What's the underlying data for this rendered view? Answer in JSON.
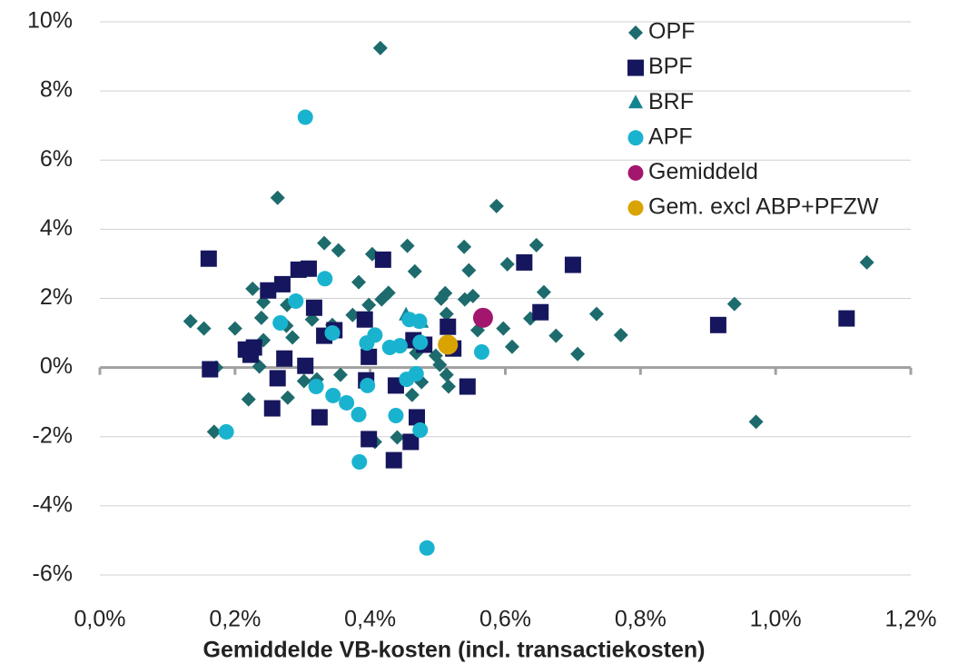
{
  "chart_data": {
    "type": "scatter",
    "x_label": "Gemiddelde VB-kosten (incl. transactiekosten)",
    "xlim": [
      0,
      1.2
    ],
    "ylim": [
      -6,
      10
    ],
    "xticks": [
      {
        "value": 0,
        "label": "0,0%"
      },
      {
        "value": 0.2,
        "label": "0,2%"
      },
      {
        "value": 0.4,
        "label": "0,4%"
      },
      {
        "value": 0.6,
        "label": "0,6%"
      },
      {
        "value": 0.8,
        "label": "0,8%"
      },
      {
        "value": 1.0,
        "label": "1,0%"
      },
      {
        "value": 1.2,
        "label": "1,2%"
      }
    ],
    "yticks": [
      {
        "value": -6,
        "label": "-6%"
      },
      {
        "value": -4,
        "label": "-4%"
      },
      {
        "value": -2,
        "label": "-2%"
      },
      {
        "value": 0,
        "label": "0%"
      },
      {
        "value": 2,
        "label": "2%"
      },
      {
        "value": 4,
        "label": "4%"
      },
      {
        "value": 6,
        "label": "6%"
      },
      {
        "value": 8,
        "label": "8%"
      },
      {
        "value": 10,
        "label": "10%"
      }
    ],
    "grid": true,
    "legend": "top-right",
    "series": [
      {
        "name": "OPF",
        "color": "#1d6b6d",
        "marker": "diamond",
        "x": [
          0.415,
          0.263,
          0.587,
          1.135,
          0.646,
          0.603,
          0.332,
          0.353,
          0.403,
          0.455,
          0.539,
          0.466,
          0.546,
          0.657,
          0.427,
          0.226,
          0.383,
          0.511,
          0.505,
          0.552,
          0.54,
          0.242,
          0.277,
          0.398,
          0.417,
          0.939,
          0.735,
          0.134,
          0.154,
          0.2,
          0.239,
          0.314,
          0.374,
          0.344,
          0.276,
          0.637,
          0.597,
          0.559,
          0.513,
          0.61,
          0.675,
          0.707,
          0.771,
          0.242,
          0.285,
          0.236,
          0.172,
          0.22,
          0.278,
          0.302,
          0.356,
          0.321,
          0.503,
          0.497,
          0.513,
          0.516,
          0.462,
          0.169,
          0.971,
          0.407,
          0.44,
          0.476,
          0.468
        ],
        "y": [
          9.24,
          4.91,
          4.67,
          3.04,
          3.54,
          2.99,
          3.6,
          3.39,
          3.28,
          3.52,
          3.49,
          2.78,
          2.81,
          2.18,
          2.16,
          2.28,
          2.47,
          2.15,
          1.99,
          2.07,
          1.97,
          1.89,
          1.81,
          1.81,
          1.97,
          1.84,
          1.55,
          1.34,
          1.13,
          1.13,
          1.44,
          1.39,
          1.52,
          1.23,
          1.21,
          1.42,
          1.13,
          1.08,
          1.55,
          0.6,
          0.92,
          0.39,
          0.94,
          0.79,
          0.87,
          0.03,
          0.0,
          -0.92,
          -0.87,
          -0.39,
          -0.21,
          -0.34,
          0.08,
          0.34,
          -0.21,
          -0.55,
          -0.79,
          -1.86,
          -1.57,
          -2.15,
          -2.02,
          -0.42,
          0.42
        ]
      },
      {
        "name": "BPF",
        "color": "#16165e",
        "marker": "square",
        "x": [
          0.161,
          0.27,
          0.249,
          0.294,
          0.309,
          0.419,
          0.628,
          0.7,
          0.317,
          0.652,
          0.392,
          0.515,
          0.347,
          0.332,
          0.915,
          1.105,
          0.216,
          0.228,
          0.223,
          0.273,
          0.398,
          0.464,
          0.48,
          0.523,
          0.304,
          0.163,
          0.263,
          0.394,
          0.438,
          0.544,
          0.255,
          0.325,
          0.469,
          0.398,
          0.46,
          0.435
        ],
        "y": [
          3.15,
          2.41,
          2.23,
          2.83,
          2.86,
          3.12,
          3.04,
          2.97,
          1.73,
          1.6,
          1.39,
          1.18,
          1.08,
          0.92,
          1.23,
          1.42,
          0.52,
          0.58,
          0.37,
          0.26,
          0.31,
          0.79,
          0.66,
          0.55,
          0.05,
          -0.05,
          -0.31,
          -0.37,
          -0.52,
          -0.55,
          -1.18,
          -1.44,
          -1.44,
          -2.07,
          -2.15,
          -2.68
        ]
      },
      {
        "name": "BRF",
        "color": "#12848f",
        "marker": "triangle",
        "x": [
          0.453,
          0.476
        ],
        "y": [
          1.52,
          1.31
        ]
      },
      {
        "name": "APF",
        "color": "#1ab3cf",
        "marker": "circle",
        "x": [
          0.304,
          0.333,
          0.29,
          0.267,
          0.344,
          0.458,
          0.473,
          0.407,
          0.395,
          0.429,
          0.444,
          0.474,
          0.565,
          0.454,
          0.468,
          0.32,
          0.396,
          0.345,
          0.365,
          0.383,
          0.438,
          0.474,
          0.187,
          0.384,
          0.484
        ],
        "y": [
          7.24,
          2.57,
          1.92,
          1.29,
          1.0,
          1.39,
          1.34,
          0.94,
          0.71,
          0.58,
          0.63,
          0.73,
          0.45,
          -0.34,
          -0.18,
          -0.55,
          -0.52,
          -0.81,
          -1.02,
          -1.36,
          -1.39,
          -1.81,
          -1.86,
          -2.73,
          -5.22
        ]
      },
      {
        "name": "Gemiddeld",
        "color": "#a3166d",
        "marker": "big-circle",
        "x": [
          0.567
        ],
        "y": [
          1.44
        ]
      },
      {
        "name": "Gem. excl ABP+PFZW",
        "color": "#d9a300",
        "marker": "big-circle",
        "x": [
          0.515
        ],
        "y": [
          0.66
        ]
      }
    ]
  }
}
